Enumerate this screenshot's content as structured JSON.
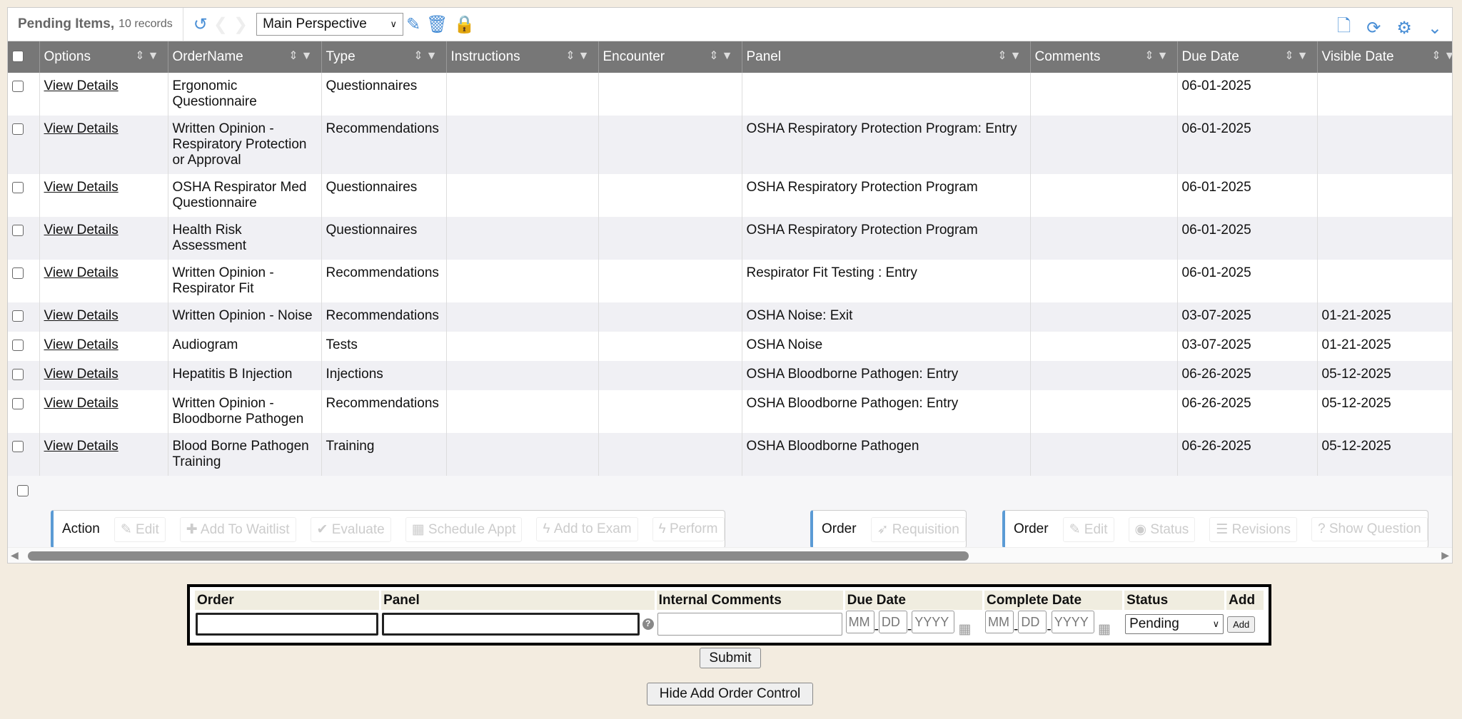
{
  "toolbar": {
    "title": "Pending Items,",
    "count": "10 records",
    "perspective": "Main Perspective"
  },
  "columns": [
    "Options",
    "OrderName",
    "Type",
    "Instructions",
    "Encounter",
    "Panel",
    "Comments",
    "Due Date",
    "Visible Date"
  ],
  "rows": [
    {
      "option": "View Details",
      "order": "Ergonomic Questionnaire",
      "type": "Questionnaires",
      "instructions": "",
      "encounter": "",
      "panel": "",
      "comments": "",
      "due": "06-01-2025",
      "visible": ""
    },
    {
      "option": "View Details",
      "order": "Written Opinion - Respiratory Protection or Approval",
      "type": "Recommendations",
      "instructions": "",
      "encounter": "",
      "panel": "OSHA Respiratory Protection Program: Entry",
      "comments": "",
      "due": "06-01-2025",
      "visible": ""
    },
    {
      "option": "View Details",
      "order": "OSHA Respirator Med Questionnaire",
      "type": "Questionnaires",
      "instructions": "",
      "encounter": "",
      "panel": "OSHA Respiratory Protection Program",
      "comments": "",
      "due": "06-01-2025",
      "visible": ""
    },
    {
      "option": "View Details",
      "order": "Health Risk Assessment",
      "type": "Questionnaires",
      "instructions": "",
      "encounter": "",
      "panel": "OSHA Respiratory Protection Program",
      "comments": "",
      "due": "06-01-2025",
      "visible": ""
    },
    {
      "option": "View Details",
      "order": "Written Opinion - Respirator Fit",
      "type": "Recommendations",
      "instructions": "",
      "encounter": "",
      "panel": "Respirator Fit Testing : Entry",
      "comments": "",
      "due": "06-01-2025",
      "visible": ""
    },
    {
      "option": "View Details",
      "order": "Written Opinion - Noise",
      "type": "Recommendations",
      "instructions": "",
      "encounter": "",
      "panel": "OSHA Noise: Exit",
      "comments": "",
      "due": "03-07-2025",
      "visible": "01-21-2025"
    },
    {
      "option": "View Details",
      "order": "Audiogram",
      "type": "Tests",
      "instructions": "",
      "encounter": "",
      "panel": "OSHA Noise",
      "comments": "",
      "due": "03-07-2025",
      "visible": "01-21-2025"
    },
    {
      "option": "View Details",
      "order": "Hepatitis B Injection",
      "type": "Injections",
      "instructions": "",
      "encounter": "",
      "panel": "OSHA Bloodborne Pathogen: Entry",
      "comments": "",
      "due": "06-26-2025",
      "visible": "05-12-2025"
    },
    {
      "option": "View Details",
      "order": "Written Opinion - Bloodborne Pathogen",
      "type": "Recommendations",
      "instructions": "",
      "encounter": "",
      "panel": "OSHA Bloodborne Pathogen: Entry",
      "comments": "",
      "due": "06-26-2025",
      "visible": "05-12-2025"
    },
    {
      "option": "View Details",
      "order": "Blood Borne Pathogen Training",
      "type": "Training",
      "instructions": "",
      "encounter": "",
      "panel": "OSHA Bloodborne Pathogen",
      "comments": "",
      "due": "06-26-2025",
      "visible": "05-12-2025"
    }
  ],
  "action_groups": [
    {
      "label": "Action",
      "buttons": [
        "Edit",
        "Add To Waitlist",
        "Evaluate",
        "Schedule Appt",
        "Add to Exam",
        "Perform"
      ]
    },
    {
      "label": "Order",
      "buttons": [
        "Requisition"
      ]
    },
    {
      "label": "Order",
      "buttons": [
        "Edit",
        "Status",
        "Revisions",
        "Show Question"
      ]
    }
  ],
  "form": {
    "headers": [
      "Order",
      "Panel",
      "Internal Comments",
      "Due Date",
      "Complete Date",
      "Status",
      "Add"
    ],
    "date_placeholders": [
      "MM",
      "DD",
      "YYYY"
    ],
    "status": "Pending",
    "add": "Add"
  },
  "submit": "Submit",
  "hide": "Hide Add Order Control",
  "colors": {
    "accent": "#4a8fd6",
    "header": "#777777",
    "background": "#f3ece0"
  }
}
